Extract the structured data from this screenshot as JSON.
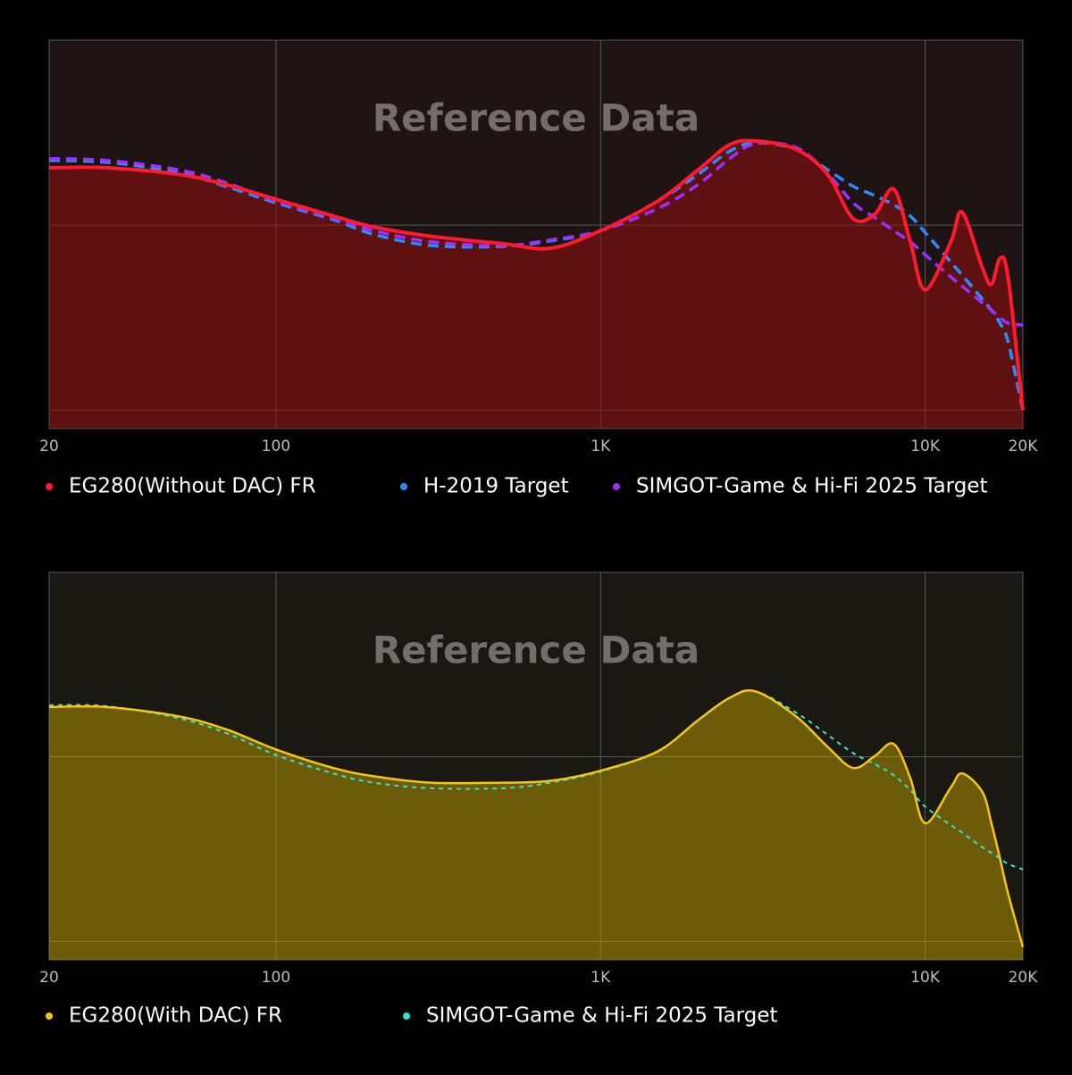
{
  "chart_data": [
    {
      "type": "line",
      "annotation": "Reference Data",
      "xscale": "log",
      "grid": true,
      "area_fill": true,
      "xlim": [
        20,
        20000
      ],
      "xticks": [
        20,
        100,
        {
          "value": 1000,
          "label": "1K"
        },
        {
          "value": 10000,
          "label": "10K"
        },
        {
          "value": 20000,
          "label": "20K"
        }
      ],
      "ylim": [
        -11,
        10
      ],
      "yticks": [
        -10,
        0
      ],
      "x": [
        20,
        30,
        50,
        70,
        100,
        150,
        200,
        300,
        500,
        700,
        1000,
        1500,
        2000,
        2500,
        3000,
        4000,
        5000,
        6000,
        7000,
        8000,
        9000,
        10000,
        12000,
        13000,
        15000,
        16000,
        17000,
        18000,
        20000
      ],
      "series": [
        {
          "name": "EG280(Without DAC) FR",
          "color": "#ff1a2e",
          "dash": false,
          "values": [
            3.1,
            3.1,
            2.75,
            2.2,
            1.4,
            0.5,
            -0.1,
            -0.6,
            -1.0,
            -1.25,
            -0.3,
            1.3,
            3.0,
            4.35,
            4.55,
            4.1,
            2.75,
            0.35,
            0.6,
            1.95,
            -0.9,
            -3.5,
            -0.9,
            0.7,
            -2.3,
            -3.2,
            -1.8,
            -2.8,
            -10
          ]
        },
        {
          "name": "H-2019 Target",
          "color": "#2a8cff",
          "dash": true,
          "values": [
            3.5,
            3.4,
            2.85,
            2.1,
            1.2,
            0.3,
            -0.5,
            -1.1,
            -1.15,
            -0.85,
            -0.3,
            1.3,
            2.75,
            4.0,
            4.45,
            4.1,
            3.0,
            2.1,
            1.6,
            1.1,
            0.5,
            -0.4,
            -2.0,
            -2.7,
            -4.0,
            -4.6,
            -5.3,
            -6.3,
            -10
          ]
        },
        {
          "name": "SIMGOT-Game & Hi-Fi 2025 Target",
          "color": "#9b30ff",
          "dash": true,
          "values": [
            3.6,
            3.5,
            3.0,
            2.3,
            1.3,
            0.4,
            -0.3,
            -0.9,
            -1.1,
            -0.8,
            -0.3,
            0.9,
            2.2,
            3.6,
            4.4,
            4.2,
            2.8,
            1.2,
            0.4,
            -0.3,
            -0.9,
            -1.6,
            -2.8,
            -3.3,
            -4.2,
            -4.6,
            -5.0,
            -5.3,
            -5.4
          ]
        }
      ]
    },
    {
      "type": "line",
      "annotation": "Reference Data",
      "xscale": "log",
      "grid": true,
      "area_fill": true,
      "xlim": [
        20,
        20000
      ],
      "xticks": [
        20,
        100,
        {
          "value": 1000,
          "label": "1K"
        },
        {
          "value": 10000,
          "label": "10K"
        },
        {
          "value": 20000,
          "label": "20K"
        }
      ],
      "ylim": [
        -11,
        10
      ],
      "yticks": [
        -10,
        0
      ],
      "x": [
        20,
        30,
        50,
        70,
        100,
        150,
        200,
        300,
        500,
        700,
        1000,
        1500,
        2000,
        2500,
        3000,
        4000,
        5000,
        6000,
        7000,
        8000,
        9000,
        10000,
        12000,
        13000,
        15000,
        16000,
        17000,
        18000,
        20000
      ],
      "series": [
        {
          "name": "EG280(With DAC) FR",
          "color": "#f5c518",
          "dash": false,
          "values": [
            2.7,
            2.7,
            2.2,
            1.5,
            0.4,
            -0.6,
            -1.05,
            -1.4,
            -1.4,
            -1.3,
            -0.75,
            0.3,
            2.0,
            3.2,
            3.55,
            2.2,
            0.55,
            -0.6,
            0.05,
            0.7,
            -1.15,
            -3.6,
            -1.65,
            -0.9,
            -1.9,
            -3.6,
            -5.5,
            -7.4,
            -10.3
          ]
        },
        {
          "name": "SIMGOT-Game & Hi-Fi 2025 Target",
          "color": "#2ee6d6",
          "dash": true,
          "values": [
            2.8,
            2.75,
            2.1,
            1.3,
            0.1,
            -0.9,
            -1.4,
            -1.7,
            -1.7,
            -1.4,
            -0.8,
            0.3,
            2.0,
            3.2,
            3.55,
            2.4,
            1.2,
            0.2,
            -0.4,
            -1.0,
            -1.8,
            -2.7,
            -3.7,
            -4.1,
            -4.9,
            -5.2,
            -5.5,
            -5.8,
            -6.1
          ]
        }
      ]
    }
  ]
}
